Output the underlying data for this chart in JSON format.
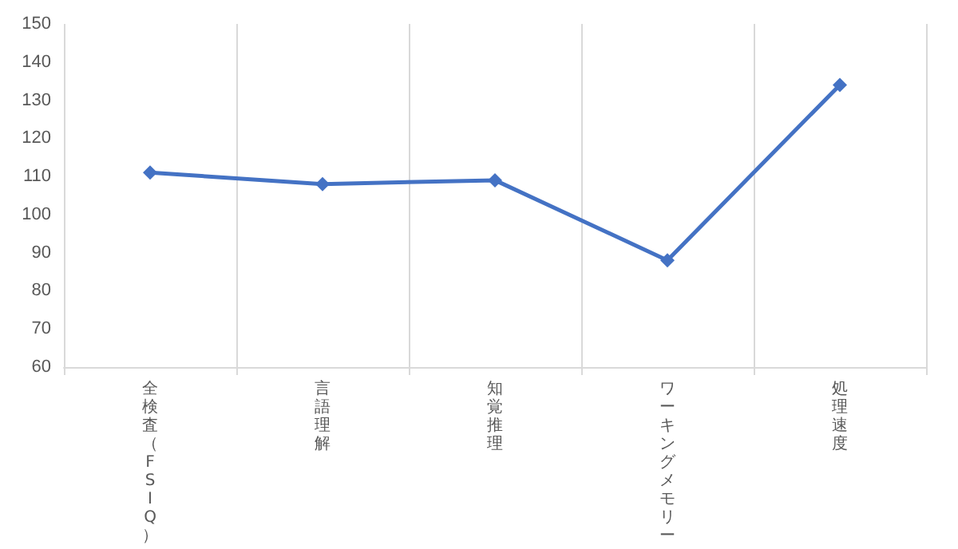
{
  "chart_data": {
    "type": "line",
    "categories": [
      "全検査（FSIQ）",
      "言語理解",
      "知覚推理",
      "ワーキングメモリー",
      "処理速度"
    ],
    "series": [
      {
        "color": "#4472c4",
        "values": [
          111,
          108,
          109,
          88,
          134
        ]
      }
    ],
    "ylim": [
      60,
      150
    ],
    "yticks": [
      60,
      70,
      80,
      90,
      100,
      110,
      120,
      130,
      140,
      150
    ],
    "grid": "x",
    "marker": "diamond",
    "line_style": "solid"
  }
}
